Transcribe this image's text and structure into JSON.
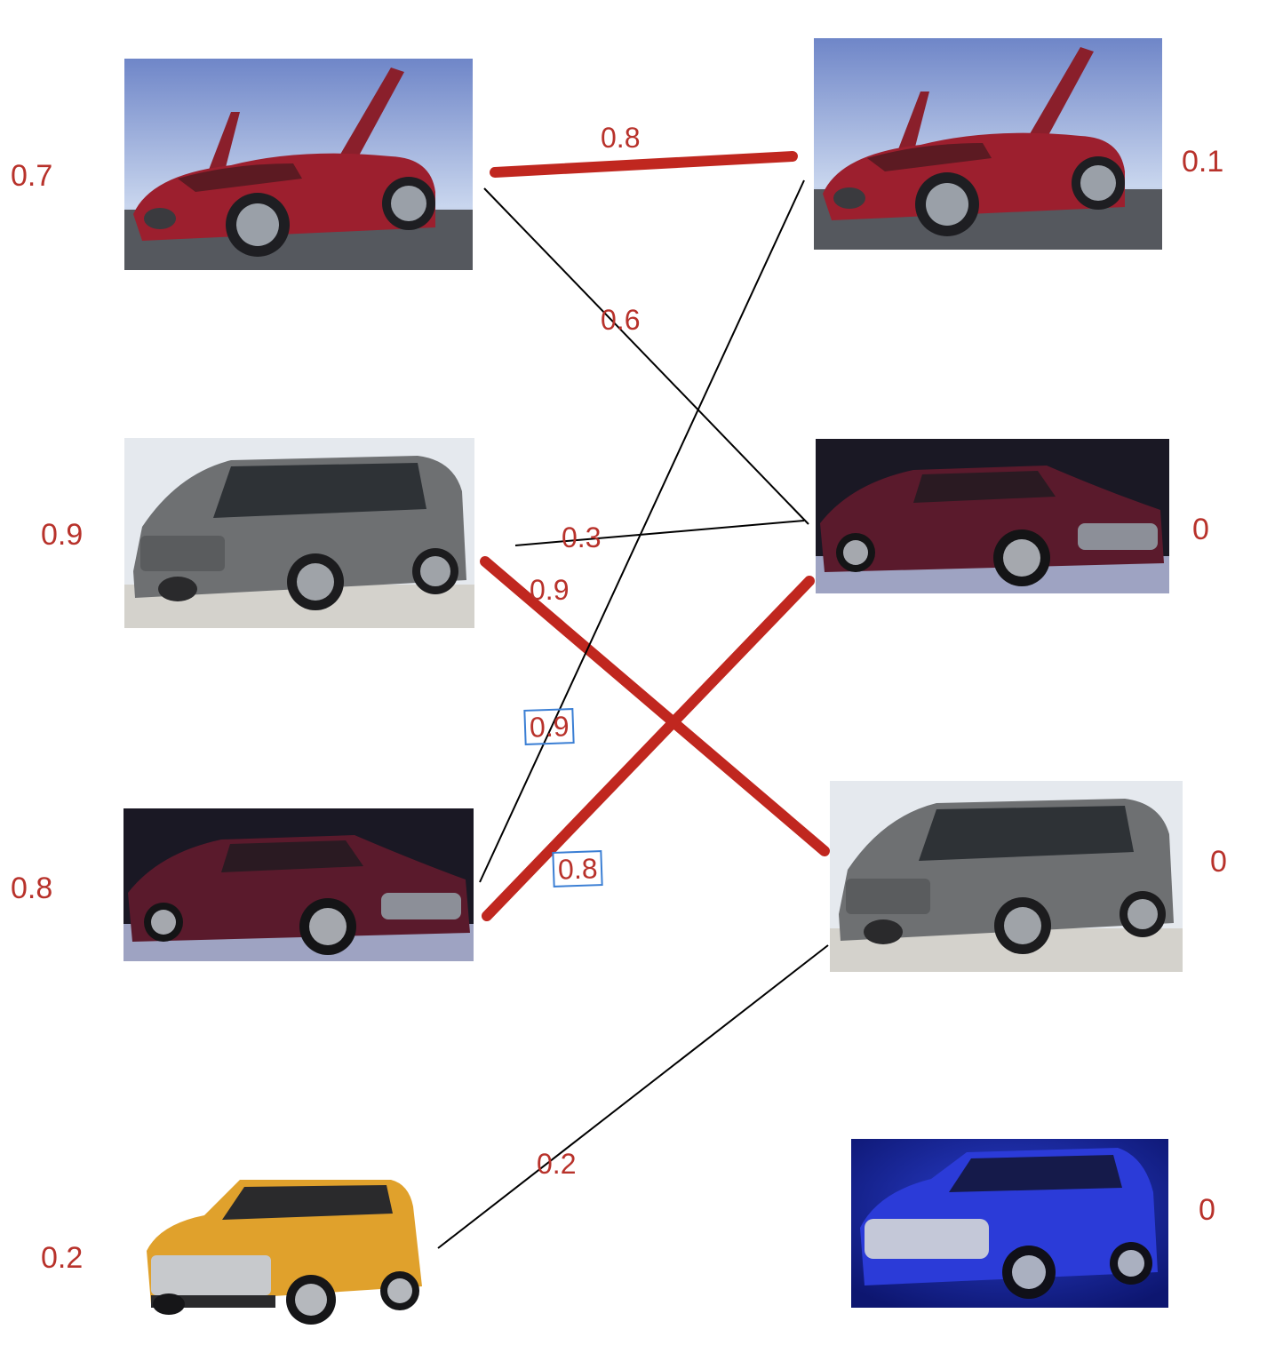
{
  "left_nodes": [
    {
      "car": "red-gullwing-coupe",
      "weight": "0.7"
    },
    {
      "car": "grey-minivan",
      "weight": "0.9"
    },
    {
      "car": "maroon-sedan",
      "weight": "0.8"
    },
    {
      "car": "yellow-suv",
      "weight": "0.2"
    }
  ],
  "right_nodes": [
    {
      "car": "red-gullwing-coupe",
      "weight": "0.1"
    },
    {
      "car": "maroon-sedan",
      "weight": "0"
    },
    {
      "car": "grey-minivan",
      "weight": "0"
    },
    {
      "car": "blue-suv",
      "weight": "0"
    }
  ],
  "edges": [
    {
      "from": 0,
      "to": 0,
      "weight": "0.8",
      "matched": true
    },
    {
      "from": 0,
      "to": 1,
      "weight": "0.6",
      "matched": false
    },
    {
      "from": 1,
      "to": 1,
      "weight": "0.3",
      "matched": false
    },
    {
      "from": 1,
      "to": 2,
      "weight": "0.9",
      "matched": true
    },
    {
      "from": 2,
      "to": 0,
      "weight": "0.9",
      "matched": false,
      "boxed": true
    },
    {
      "from": 2,
      "to": 1,
      "weight": "0.8",
      "matched": true,
      "boxed": true
    },
    {
      "from": 3,
      "to": 2,
      "weight": "0.2",
      "matched": false
    }
  ],
  "colors": {
    "label": "#b8322b",
    "matched_edge": "#c0271f",
    "plain_edge": "#000000",
    "label_box": "#3b7fd4"
  }
}
